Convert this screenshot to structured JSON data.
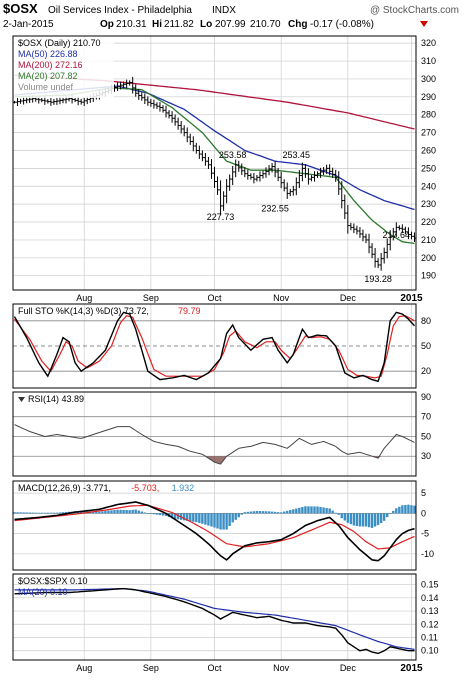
{
  "header": {
    "symbol": "$OSX",
    "name": "Oil Services Index - Philadelphia",
    "exchange": "INDX",
    "watermark": "@ StockCharts.com",
    "date": "2-Jan-2015",
    "op_label": "Op",
    "op": "210.31",
    "hi_label": "Hi",
    "hi": "211.82",
    "lo_label": "Lo",
    "lo": "207.99",
    "close": "210.70",
    "chg_label": "Chg",
    "chg": "-0.17 (-0.08%)"
  },
  "colors": {
    "price": "#000000",
    "ma50": "#1f2fa8",
    "ma200": "#b0143c",
    "ma20": "#2c7a2c",
    "macd_hist": "#3b8fc4",
    "rsi_fill": "#8a5a5a",
    "signal": "#e02020",
    "grid": "#cccccc"
  },
  "chart_data": [
    {
      "type": "ohlc",
      "panel": "price",
      "legend": [
        {
          "label": "$OSX (Daily) 210.70",
          "color": "#000000"
        },
        {
          "label": "MA(50) 226.88",
          "color": "#1f2fa8"
        },
        {
          "label": "MA(200) 272.16",
          "color": "#b0143c"
        },
        {
          "label": "MA(20) 207.82",
          "color": "#2c7a2c"
        },
        {
          "label": "Volume undef",
          "color": "#888888"
        }
      ],
      "x_ticks": [
        "Aug",
        "Sep",
        "Oct",
        "Nov",
        "Dec",
        "2015"
      ],
      "x_tick_days": [
        23,
        45,
        66,
        88,
        110,
        131
      ],
      "y_ticks": [
        190,
        200,
        210,
        220,
        230,
        240,
        250,
        260,
        270,
        280,
        290,
        300,
        310,
        320
      ],
      "ylim": [
        182,
        324
      ],
      "n_days": 133,
      "price_keys": [
        [
          0,
          287
        ],
        [
          6,
          289
        ],
        [
          12,
          287
        ],
        [
          18,
          289
        ],
        [
          22,
          287
        ],
        [
          26,
          290
        ],
        [
          30,
          293
        ],
        [
          34,
          296
        ],
        [
          38,
          298
        ],
        [
          40,
          292
        ],
        [
          44,
          287
        ],
        [
          48,
          284
        ],
        [
          52,
          278
        ],
        [
          56,
          270
        ],
        [
          60,
          260
        ],
        [
          64,
          252
        ],
        [
          67,
          238
        ],
        [
          68,
          229
        ],
        [
          70,
          240
        ],
        [
          73,
          252
        ],
        [
          76,
          247
        ],
        [
          79,
          244
        ],
        [
          82,
          247
        ],
        [
          85,
          251
        ],
        [
          87,
          245
        ],
        [
          90,
          236
        ],
        [
          92,
          238
        ],
        [
          95,
          250
        ],
        [
          97,
          244
        ],
        [
          100,
          247
        ],
        [
          103,
          250
        ],
        [
          106,
          245
        ],
        [
          108,
          232
        ],
        [
          110,
          218
        ],
        [
          113,
          215
        ],
        [
          116,
          210
        ],
        [
          119,
          198
        ],
        [
          120,
          196
        ],
        [
          122,
          203
        ],
        [
          124,
          212
        ],
        [
          126,
          217
        ],
        [
          128,
          216
        ],
        [
          130,
          213
        ],
        [
          132,
          211
        ]
      ],
      "ma50_keys": [
        [
          0,
          291
        ],
        [
          20,
          294
        ],
        [
          34,
          296
        ],
        [
          44,
          292
        ],
        [
          56,
          283
        ],
        [
          66,
          271
        ],
        [
          76,
          260
        ],
        [
          86,
          254
        ],
        [
          96,
          252
        ],
        [
          106,
          246
        ],
        [
          114,
          238
        ],
        [
          122,
          232
        ],
        [
          132,
          227
        ]
      ],
      "ma200_keys": [
        [
          0,
          302
        ],
        [
          30,
          299
        ],
        [
          60,
          294
        ],
        [
          90,
          287
        ],
        [
          110,
          281
        ],
        [
          132,
          272
        ]
      ],
      "ma20_keys": [
        [
          0,
          290
        ],
        [
          18,
          291
        ],
        [
          32,
          295
        ],
        [
          42,
          294
        ],
        [
          52,
          284
        ],
        [
          62,
          270
        ],
        [
          70,
          254
        ],
        [
          78,
          249
        ],
        [
          86,
          249
        ],
        [
          96,
          247
        ],
        [
          106,
          245
        ],
        [
          112,
          232
        ],
        [
          118,
          221
        ],
        [
          124,
          213
        ],
        [
          128,
          209
        ],
        [
          132,
          208
        ]
      ],
      "annotations": [
        {
          "text": "253.58",
          "day": 72,
          "value": 253.58
        },
        {
          "text": "253.45",
          "day": 93,
          "value": 253.45
        },
        {
          "text": "227.73",
          "day": 68,
          "value": 227.73
        },
        {
          "text": "232.55",
          "day": 86,
          "value": 232.55
        },
        {
          "text": "217.64",
          "day": 126,
          "value": 217.64
        },
        {
          "text": "193.28",
          "day": 120,
          "value": 193.28
        }
      ]
    },
    {
      "type": "line",
      "panel": "stochastic",
      "legend": [
        {
          "label": "Full STO %K(14,3) %D(3) 73.72,",
          "color": "#000000"
        },
        {
          "label": "79.79",
          "color": "#e02020"
        }
      ],
      "y_ticks": [
        20,
        50,
        80
      ],
      "ref_lines": [
        20,
        50,
        80
      ],
      "ylim": [
        0,
        100
      ],
      "k_keys": [
        [
          0,
          85
        ],
        [
          4,
          60
        ],
        [
          8,
          30
        ],
        [
          11,
          14
        ],
        [
          14,
          40
        ],
        [
          16,
          60
        ],
        [
          18,
          55
        ],
        [
          20,
          30
        ],
        [
          22,
          20
        ],
        [
          26,
          30
        ],
        [
          30,
          45
        ],
        [
          34,
          80
        ],
        [
          36,
          90
        ],
        [
          38,
          88
        ],
        [
          40,
          70
        ],
        [
          44,
          20
        ],
        [
          48,
          10
        ],
        [
          52,
          12
        ],
        [
          56,
          15
        ],
        [
          60,
          10
        ],
        [
          64,
          18
        ],
        [
          68,
          35
        ],
        [
          70,
          65
        ],
        [
          72,
          75
        ],
        [
          74,
          60
        ],
        [
          78,
          45
        ],
        [
          82,
          58
        ],
        [
          85,
          60
        ],
        [
          87,
          45
        ],
        [
          90,
          30
        ],
        [
          92,
          40
        ],
        [
          95,
          70
        ],
        [
          97,
          60
        ],
        [
          100,
          63
        ],
        [
          103,
          62
        ],
        [
          106,
          50
        ],
        [
          109,
          18
        ],
        [
          112,
          12
        ],
        [
          115,
          15
        ],
        [
          118,
          10
        ],
        [
          120,
          8
        ],
        [
          122,
          30
        ],
        [
          124,
          80
        ],
        [
          126,
          90
        ],
        [
          128,
          88
        ],
        [
          130,
          82
        ],
        [
          132,
          74
        ]
      ],
      "d_keys": [
        [
          0,
          82
        ],
        [
          5,
          58
        ],
        [
          9,
          32
        ],
        [
          12,
          20
        ],
        [
          15,
          40
        ],
        [
          17,
          55
        ],
        [
          19,
          50
        ],
        [
          21,
          32
        ],
        [
          24,
          24
        ],
        [
          28,
          32
        ],
        [
          32,
          50
        ],
        [
          35,
          78
        ],
        [
          37,
          86
        ],
        [
          39,
          84
        ],
        [
          42,
          60
        ],
        [
          46,
          22
        ],
        [
          50,
          14
        ],
        [
          54,
          14
        ],
        [
          58,
          14
        ],
        [
          62,
          14
        ],
        [
          66,
          22
        ],
        [
          69,
          42
        ],
        [
          71,
          62
        ],
        [
          73,
          68
        ],
        [
          76,
          55
        ],
        [
          80,
          48
        ],
        [
          83,
          55
        ],
        [
          86,
          55
        ],
        [
          88,
          45
        ],
        [
          91,
          35
        ],
        [
          93,
          45
        ],
        [
          96,
          62
        ],
        [
          98,
          60
        ],
        [
          101,
          61
        ],
        [
          104,
          58
        ],
        [
          107,
          45
        ],
        [
          110,
          22
        ],
        [
          113,
          15
        ],
        [
          116,
          14
        ],
        [
          119,
          12
        ],
        [
          121,
          14
        ],
        [
          123,
          40
        ],
        [
          125,
          74
        ],
        [
          127,
          85
        ],
        [
          129,
          86
        ],
        [
          131,
          82
        ],
        [
          132,
          80
        ]
      ]
    },
    {
      "type": "area",
      "panel": "rsi",
      "legend": [
        {
          "label": "RSI(14) 43.89",
          "color": "#000000"
        }
      ],
      "y_ticks": [
        30,
        50,
        70,
        90
      ],
      "ref_lines": [
        30,
        50,
        70
      ],
      "ylim": [
        10,
        95
      ],
      "rsi_keys": [
        [
          0,
          62
        ],
        [
          5,
          55
        ],
        [
          10,
          50
        ],
        [
          14,
          52
        ],
        [
          18,
          50
        ],
        [
          22,
          48
        ],
        [
          28,
          54
        ],
        [
          34,
          60
        ],
        [
          38,
          60
        ],
        [
          42,
          52
        ],
        [
          46,
          45
        ],
        [
          50,
          42
        ],
        [
          54,
          40
        ],
        [
          58,
          35
        ],
        [
          62,
          32
        ],
        [
          64,
          28
        ],
        [
          66,
          24
        ],
        [
          68,
          22
        ],
        [
          70,
          30
        ],
        [
          74,
          38
        ],
        [
          78,
          40
        ],
        [
          82,
          44
        ],
        [
          86,
          42
        ],
        [
          90,
          38
        ],
        [
          94,
          48
        ],
        [
          98,
          42
        ],
        [
          102,
          45
        ],
        [
          106,
          40
        ],
        [
          108,
          35
        ],
        [
          110,
          32
        ],
        [
          114,
          34
        ],
        [
          118,
          30
        ],
        [
          120,
          28
        ],
        [
          122,
          38
        ],
        [
          124,
          45
        ],
        [
          126,
          52
        ],
        [
          128,
          50
        ],
        [
          130,
          47
        ],
        [
          132,
          44
        ]
      ]
    },
    {
      "type": "bar-line",
      "panel": "macd",
      "legend": [
        {
          "label": "MACD(12,26,9) -3.771,",
          "color": "#000000"
        },
        {
          "label": "-5.703,",
          "color": "#e02020"
        },
        {
          "label": "1.932",
          "color": "#3b8fc4"
        }
      ],
      "y_ticks": [
        -10,
        -5,
        0,
        5
      ],
      "ylim": [
        -14,
        8
      ],
      "macd_keys": [
        [
          0,
          -1.5
        ],
        [
          8,
          -1.0
        ],
        [
          14,
          -0.5
        ],
        [
          20,
          0.3
        ],
        [
          28,
          1.0
        ],
        [
          34,
          2.2
        ],
        [
          40,
          2.8
        ],
        [
          44,
          2.0
        ],
        [
          50,
          0.0
        ],
        [
          54,
          -2.0
        ],
        [
          60,
          -5.0
        ],
        [
          64,
          -7.5
        ],
        [
          68,
          -10.5
        ],
        [
          70,
          -11.5
        ],
        [
          72,
          -10
        ],
        [
          76,
          -8
        ],
        [
          80,
          -7.3
        ],
        [
          84,
          -7
        ],
        [
          88,
          -6.5
        ],
        [
          92,
          -5
        ],
        [
          96,
          -3
        ],
        [
          100,
          -1.8
        ],
        [
          104,
          -1
        ],
        [
          107,
          -3
        ],
        [
          110,
          -6
        ],
        [
          114,
          -9
        ],
        [
          118,
          -11.5
        ],
        [
          120,
          -11.7
        ],
        [
          122,
          -10.5
        ],
        [
          124,
          -8.5
        ],
        [
          126,
          -6.5
        ],
        [
          128,
          -5
        ],
        [
          130,
          -4.2
        ],
        [
          132,
          -3.8
        ]
      ],
      "signal_keys": [
        [
          0,
          -1.8
        ],
        [
          10,
          -1.0
        ],
        [
          20,
          -0.2
        ],
        [
          30,
          0.8
        ],
        [
          38,
          1.8
        ],
        [
          44,
          2.0
        ],
        [
          52,
          0.2
        ],
        [
          58,
          -2.0
        ],
        [
          64,
          -4.5
        ],
        [
          70,
          -7.5
        ],
        [
          76,
          -8.3
        ],
        [
          84,
          -7.5
        ],
        [
          92,
          -6
        ],
        [
          100,
          -3.5
        ],
        [
          104,
          -2.2
        ],
        [
          108,
          -2.8
        ],
        [
          112,
          -4.5
        ],
        [
          116,
          -7
        ],
        [
          120,
          -8.8
        ],
        [
          124,
          -8.5
        ],
        [
          128,
          -7
        ],
        [
          132,
          -5.7
        ]
      ]
    },
    {
      "type": "line",
      "panel": "ratio",
      "legend": [
        {
          "label": "$OSX:$SPX 0.10",
          "color": "#000000"
        },
        {
          "label": "MA(20) 0.10",
          "color": "#1f2fa8"
        }
      ],
      "y_ticks": [
        0.1,
        0.11,
        0.12,
        0.13,
        0.14,
        0.15
      ],
      "ylim": [
        0.093,
        0.158
      ],
      "ratio_keys": [
        [
          0,
          0.143
        ],
        [
          10,
          0.144
        ],
        [
          18,
          0.144
        ],
        [
          24,
          0.145
        ],
        [
          30,
          0.146
        ],
        [
          36,
          0.147
        ],
        [
          40,
          0.146
        ],
        [
          44,
          0.144
        ],
        [
          50,
          0.141
        ],
        [
          56,
          0.137
        ],
        [
          62,
          0.132
        ],
        [
          66,
          0.127
        ],
        [
          68,
          0.124
        ],
        [
          72,
          0.129
        ],
        [
          76,
          0.127
        ],
        [
          80,
          0.125
        ],
        [
          84,
          0.126
        ],
        [
          88,
          0.123
        ],
        [
          92,
          0.121
        ],
        [
          96,
          0.121
        ],
        [
          100,
          0.119
        ],
        [
          104,
          0.118
        ],
        [
          106,
          0.117
        ],
        [
          108,
          0.112
        ],
        [
          110,
          0.106
        ],
        [
          112,
          0.103
        ],
        [
          114,
          0.1
        ],
        [
          116,
          0.101
        ],
        [
          118,
          0.099
        ],
        [
          120,
          0.098
        ],
        [
          122,
          0.1
        ],
        [
          124,
          0.103
        ],
        [
          126,
          0.102
        ],
        [
          128,
          0.101
        ],
        [
          130,
          0.1
        ],
        [
          132,
          0.1
        ]
      ],
      "ratio_ma_keys": [
        [
          0,
          0.146
        ],
        [
          20,
          0.146
        ],
        [
          36,
          0.147
        ],
        [
          44,
          0.145
        ],
        [
          56,
          0.139
        ],
        [
          66,
          0.132
        ],
        [
          76,
          0.129
        ],
        [
          86,
          0.127
        ],
        [
          96,
          0.123
        ],
        [
          106,
          0.119
        ],
        [
          114,
          0.112
        ],
        [
          120,
          0.107
        ],
        [
          126,
          0.103
        ],
        [
          132,
          0.101
        ]
      ]
    }
  ]
}
